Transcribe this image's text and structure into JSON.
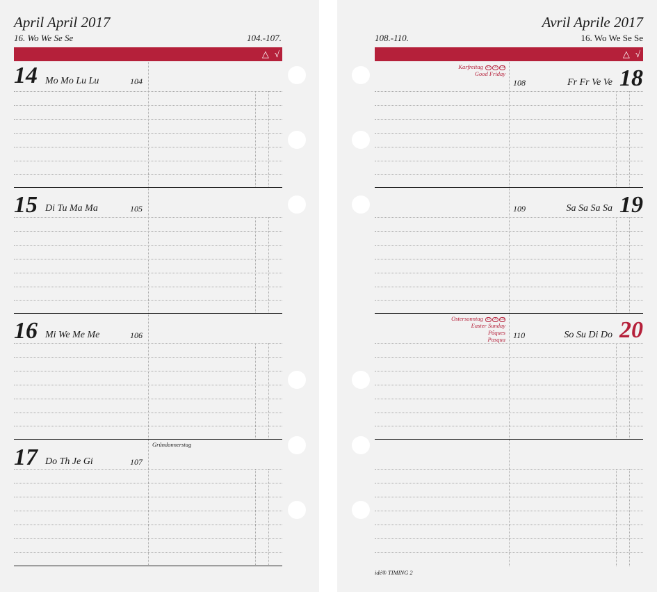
{
  "left_page": {
    "month_title": "April  April 2017",
    "week_label": "16. Wo We Se Se",
    "day_range": "104.-107.",
    "bar_marks": {
      "triangle": "△",
      "check": "√"
    },
    "days": [
      {
        "num": "14",
        "names": "Mo Mo Lu Lu",
        "doy": "104"
      },
      {
        "num": "15",
        "names": "Di Tu Ma Ma",
        "doy": "105"
      },
      {
        "num": "16",
        "names": "Mi We Me Me",
        "doy": "106"
      },
      {
        "num": "17",
        "names": "Do Th Je Gi",
        "doy": "107",
        "note": "Gründonnerstag"
      }
    ]
  },
  "right_page": {
    "month_title": "Avril  Aprile 2017",
    "week_label": "16. Wo We Se Se",
    "day_range": "108.-110.",
    "bar_marks": {
      "triangle": "△",
      "check": "√"
    },
    "days": [
      {
        "num": "18",
        "names": "Fr Fr Ve Ve",
        "doy": "108",
        "holiday": [
          "Karfreitag",
          "Good Friday"
        ]
      },
      {
        "num": "19",
        "names": "Sa Sa Sa Sa",
        "doy": "109"
      },
      {
        "num": "20",
        "names": "So Su Di Do",
        "doy": "110",
        "holiday": [
          "Ostersonntag",
          "Easter Sunday",
          "Pâques",
          "Pasqua"
        ],
        "color": "#b5203a"
      }
    ],
    "holiday_symbols": [
      "D",
      "A",
      "CH"
    ],
    "footer": "idé® TIMING 2"
  }
}
